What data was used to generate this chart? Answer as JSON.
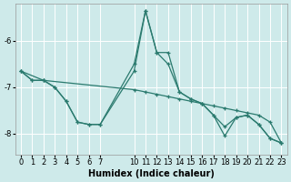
{
  "xlabel": "Humidex (Indice chaleur)",
  "background_color": "#ceeaea",
  "grid_color": "#ffffff",
  "line_color": "#2a7a6e",
  "xlim": [
    -0.5,
    23.5
  ],
  "ylim": [
    -8.45,
    -5.2
  ],
  "yticks": [
    -8,
    -7,
    -6
  ],
  "ytick_labels": [
    "-8",
    "-7",
    "-6"
  ],
  "xticks": [
    0,
    1,
    2,
    3,
    4,
    5,
    6,
    7,
    10,
    11,
    12,
    13,
    14,
    15,
    16,
    17,
    18,
    19,
    20,
    21,
    22,
    23
  ],
  "series": [
    {
      "x": [
        0,
        1,
        2,
        3,
        4,
        5,
        6,
        7,
        10,
        11,
        12,
        13,
        14,
        15,
        16,
        17,
        18,
        19,
        20,
        21,
        22,
        23
      ],
      "y": [
        -6.65,
        -6.85,
        -6.85,
        -7.0,
        -7.3,
        -7.75,
        -7.8,
        -7.8,
        -6.5,
        -5.35,
        -6.25,
        -6.25,
        -7.1,
        -7.25,
        -7.35,
        -7.6,
        -7.85,
        -7.65,
        -7.6,
        -7.8,
        -8.1,
        -8.2
      ]
    },
    {
      "x": [
        0,
        2,
        10,
        11,
        12,
        13,
        14,
        15,
        16,
        17,
        18,
        19,
        20,
        21,
        22,
        23
      ],
      "y": [
        -6.65,
        -6.85,
        -7.05,
        -7.1,
        -7.15,
        -7.2,
        -7.25,
        -7.3,
        -7.35,
        -7.4,
        -7.45,
        -7.5,
        -7.55,
        -7.6,
        -7.75,
        -8.2
      ]
    },
    {
      "x": [
        0,
        1,
        2,
        3,
        4,
        5,
        6,
        7,
        10,
        11,
        12,
        13,
        14,
        15,
        16,
        17,
        18,
        19,
        20,
        21,
        22,
        23
      ],
      "y": [
        -6.65,
        -6.85,
        -6.85,
        -7.0,
        -7.3,
        -7.75,
        -7.8,
        -7.8,
        -6.65,
        -5.35,
        -6.25,
        -6.5,
        -7.1,
        -7.25,
        -7.35,
        -7.6,
        -8.05,
        -7.65,
        -7.6,
        -7.8,
        -8.1,
        -8.2
      ]
    }
  ]
}
